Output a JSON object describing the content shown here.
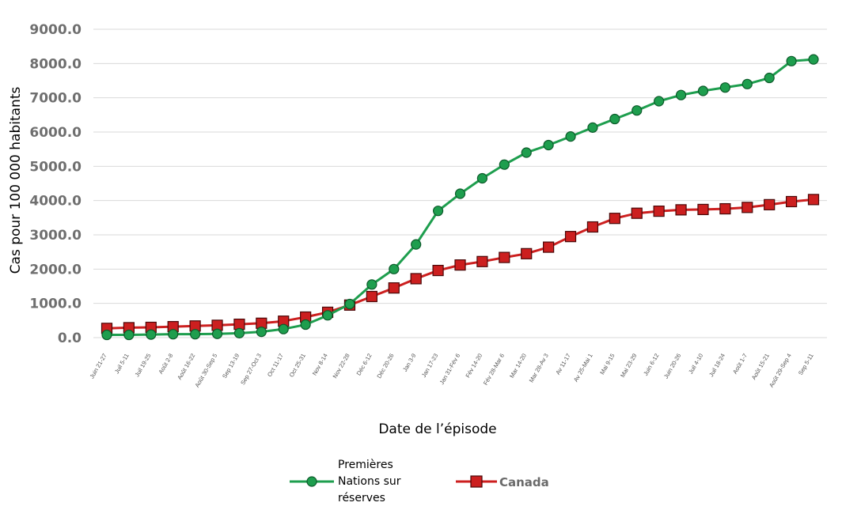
{
  "chart_data": {
    "type": "line",
    "title": "",
    "xlabel": "Date de l’épisode",
    "ylabel": "Cas pour 100 000 habitants",
    "ylim": [
      0,
      9000
    ],
    "yticks": [
      "0.0",
      "1000.0",
      "2000.0",
      "3000.0",
      "4000.0",
      "5000.0",
      "6000.0",
      "7000.0",
      "8000.0",
      "9000.0"
    ],
    "grid": true,
    "legend_position": "bottom",
    "categories": [
      "Juin 21-27",
      "Juil 5-11",
      "Juil 19-25",
      "Août 2-8",
      "Août 16-22",
      "Août 30-Sep 5",
      "Sep 13-19",
      "Sep 27-Oct 3",
      "Oct 11-17",
      "Oct 25-31",
      "Nov 8-14",
      "Nov 22-28",
      "Déc 6-12",
      "Déc 20-26",
      "Jan 3-9",
      "Jan 17-23",
      "Jan 31-Fév 6",
      "Fév 14-20",
      "Fév 28-Mar 6",
      "Mar 14-20",
      "Mar 28-Av 3",
      "Av 11-17",
      "Av 25-Mai 1",
      "Mai 9-15",
      "Mai 23-29",
      "Juin 6-12",
      "Juin 20-26",
      "Juil 4-10",
      "Juil 18-24",
      "Août 1-7",
      "Août 15-21",
      "Août 29-Sep 4",
      "Sep 5-11"
    ],
    "series": [
      {
        "name": "Premières Nations sur réserves",
        "color": "#1e9e4e",
        "marker": "circle",
        "values": [
          80,
          80,
          90,
          100,
          100,
          110,
          130,
          170,
          250,
          380,
          650,
          980,
          1550,
          2000,
          2720,
          3700,
          4200,
          4650,
          5050,
          5400,
          5620,
          5870,
          6130,
          6380,
          6630,
          6900,
          7080,
          7200,
          7300,
          7400,
          7580,
          8070,
          8120
        ]
      },
      {
        "name": "Canada",
        "color": "#cc1f1f",
        "marker": "square",
        "values": [
          270,
          290,
          300,
          320,
          340,
          360,
          390,
          420,
          480,
          600,
          740,
          950,
          1200,
          1450,
          1720,
          1960,
          2120,
          2220,
          2340,
          2450,
          2640,
          2950,
          3230,
          3480,
          3630,
          3690,
          3730,
          3740,
          3760,
          3800,
          3880,
          3970,
          4030
        ]
      }
    ]
  }
}
